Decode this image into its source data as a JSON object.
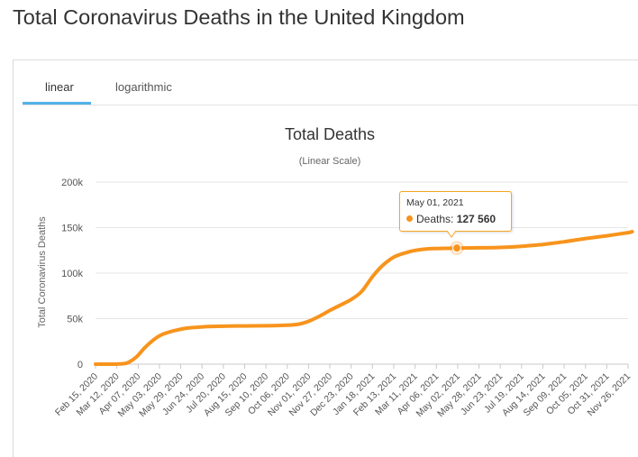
{
  "page": {
    "title": "Total Coronavirus Deaths in the United Kingdom"
  },
  "tabs": [
    {
      "label": "linear",
      "active": true
    },
    {
      "label": "logarithmic",
      "active": false
    }
  ],
  "colors": {
    "series": "#f7941d",
    "tab_active": "#52b2e7",
    "tooltip_border": "#f5a623"
  },
  "tooltip": {
    "date": "May 01, 2021",
    "series_label": "Deaths:",
    "value_text": "127 560"
  },
  "chart_data": {
    "type": "line",
    "title": "Total Deaths",
    "subtitle": "(Linear Scale)",
    "ylabel": "Total Coronavirus Deaths",
    "xlabel": "",
    "ylim": [
      0,
      200000
    ],
    "y_ticks": [
      {
        "value": 0,
        "label": "0"
      },
      {
        "value": 50000,
        "label": "50k"
      },
      {
        "value": 100000,
        "label": "100k"
      },
      {
        "value": 150000,
        "label": "150k"
      },
      {
        "value": 200000,
        "label": "200k"
      }
    ],
    "x_ticks": [
      "Feb 15, 2020",
      "Mar 12, 2020",
      "Apr 07, 2020",
      "May 03, 2020",
      "May 29, 2020",
      "Jun 24, 2020",
      "Jul 20, 2020",
      "Aug 15, 2020",
      "Sep 10, 2020",
      "Oct 06, 2020",
      "Nov 01, 2020",
      "Nov 27, 2020",
      "Dec 23, 2020",
      "Jan 18, 2021",
      "Feb 13, 2021",
      "Mar 11, 2021",
      "Apr 06, 2021",
      "May 02, 2021",
      "May 28, 2021",
      "Jun 23, 2021",
      "Jul 19, 2021",
      "Aug 14, 2021",
      "Sep 09, 2021",
      "Oct 05, 2021",
      "Oct 31, 2021",
      "Nov 26, 2021"
    ],
    "grid": "horizontal",
    "legend": "none",
    "highlight": {
      "x": "2021-05-01",
      "y": 127560
    },
    "series": [
      {
        "x": [
          "2020-02-15",
          "2020-03-05",
          "2020-03-15",
          "2020-03-25",
          "2020-04-05",
          "2020-04-15",
          "2020-04-25",
          "2020-05-05",
          "2020-05-20",
          "2020-06-05",
          "2020-06-25",
          "2020-07-20",
          "2020-08-15",
          "2020-09-10",
          "2020-10-06",
          "2020-10-20",
          "2020-11-01",
          "2020-11-15",
          "2020-11-27",
          "2020-12-10",
          "2020-12-23",
          "2021-01-05",
          "2021-01-18",
          "2021-01-30",
          "2021-02-13",
          "2021-02-28",
          "2021-03-11",
          "2021-03-25",
          "2021-04-06",
          "2021-05-01",
          "2021-05-28",
          "2021-06-23",
          "2021-07-19",
          "2021-08-14",
          "2021-09-09",
          "2021-10-05",
          "2021-10-31",
          "2021-11-26",
          "2021-12-01"
        ],
        "y": [
          0,
          0,
          200,
          1500,
          8000,
          18000,
          26000,
          32000,
          36500,
          39500,
          41000,
          41700,
          42000,
          42200,
          42800,
          44000,
          47000,
          53000,
          59000,
          65000,
          71000,
          80000,
          96000,
          108000,
          117500,
          122500,
          125000,
          126500,
          127000,
          127560,
          127800,
          128200,
          129500,
          131500,
          134500,
          138000,
          141000,
          144500,
          145500
        ]
      }
    ]
  }
}
